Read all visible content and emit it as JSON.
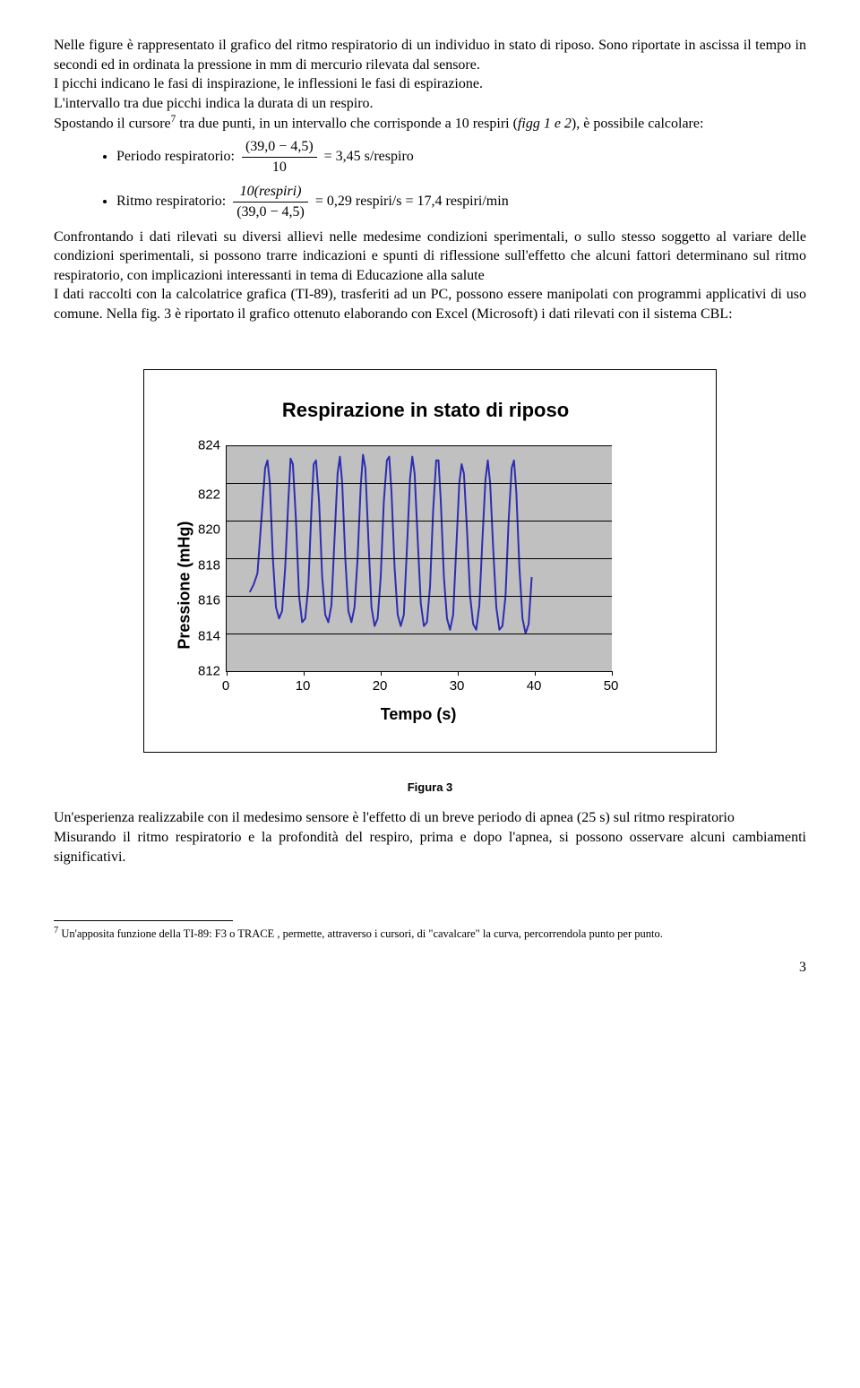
{
  "para1": "Nelle figure è rappresentato il grafico del ritmo respiratorio di un individuo in stato di riposo. Sono riportate in ascissa il tempo in secondi ed in ordinata la pressione in mm di mercurio rilevata dal sensore.",
  "para2": "I picchi indicano le fasi di inspirazione, le inflessioni le fasi di espirazione.",
  "para3": "L'intervallo tra due picchi indica la durata di un respiro.",
  "para4a": "Spostando il cursore",
  "para4_fn": "7",
  "para4b": " tra due punti, in un intervallo che corrisponde a 10 respiri (",
  "para4_figg": "figg 1 e 2",
  "para4c": "), è possibile calcolare:",
  "bullet1_label": "Periodo respiratorio: ",
  "bullet1_num": "(39,0 − 4,5)",
  "bullet1_den": "10",
  "bullet1_tail": " = 3,45 s/respiro",
  "bullet2_label": "Ritmo respiratorio: ",
  "bullet2_num": "10(respiri)",
  "bullet2_den": "(39,0 − 4,5)",
  "bullet2_tail": " = 0,29 respiri/s = 17,4 respiri/min",
  "para5": "Confrontando i dati rilevati su diversi allievi nelle medesime condizioni sperimentali, o sullo stesso soggetto al variare delle condizioni sperimentali, si possono trarre indicazioni e spunti di riflessione sull'effetto che alcuni fattori determinano sul ritmo respiratorio, con implicazioni interessanti in tema di Educazione alla salute",
  "para6": "I dati raccolti con la calcolatrice grafica (TI-89), trasferiti ad un PC, possono essere manipolati con programmi applicativi di uso comune. Nella fig. 3 è riportato il grafico ottenuto elaborando con Excel (Microsoft) i dati rilevati con il sistema CBL:",
  "chart": {
    "type": "line",
    "title": "Respirazione in stato di riposo",
    "xlabel": "Tempo (s)",
    "ylabel": "Pressione (mHg)",
    "xlim": [
      0,
      50
    ],
    "ylim": [
      812,
      824
    ],
    "xticks": [
      0,
      10,
      20,
      30,
      40,
      50
    ],
    "yticks": [
      824,
      822,
      820,
      818,
      816,
      814,
      812
    ],
    "background_color": "#c0c0c0",
    "grid_color": "#000000",
    "line_color": "#2d2db3",
    "line_width": 2,
    "data": [
      {
        "x": 3.0,
        "y": 816.2
      },
      {
        "x": 3.5,
        "y": 816.6
      },
      {
        "x": 4.0,
        "y": 817.2
      },
      {
        "x": 4.5,
        "y": 820.0
      },
      {
        "x": 5.0,
        "y": 822.8
      },
      {
        "x": 5.3,
        "y": 823.2
      },
      {
        "x": 5.6,
        "y": 822.0
      },
      {
        "x": 6.0,
        "y": 818.0
      },
      {
        "x": 6.4,
        "y": 815.4
      },
      {
        "x": 6.8,
        "y": 814.8
      },
      {
        "x": 7.2,
        "y": 815.2
      },
      {
        "x": 7.6,
        "y": 817.5
      },
      {
        "x": 8.0,
        "y": 821.0
      },
      {
        "x": 8.3,
        "y": 823.3
      },
      {
        "x": 8.6,
        "y": 823.0
      },
      {
        "x": 9.0,
        "y": 820.0
      },
      {
        "x": 9.4,
        "y": 816.0
      },
      {
        "x": 9.8,
        "y": 814.6
      },
      {
        "x": 10.2,
        "y": 814.8
      },
      {
        "x": 10.6,
        "y": 816.5
      },
      {
        "x": 11.0,
        "y": 820.5
      },
      {
        "x": 11.3,
        "y": 823.0
      },
      {
        "x": 11.6,
        "y": 823.2
      },
      {
        "x": 12.0,
        "y": 821.0
      },
      {
        "x": 12.4,
        "y": 817.0
      },
      {
        "x": 12.8,
        "y": 815.0
      },
      {
        "x": 13.2,
        "y": 814.6
      },
      {
        "x": 13.6,
        "y": 815.5
      },
      {
        "x": 14.0,
        "y": 819.0
      },
      {
        "x": 14.4,
        "y": 822.5
      },
      {
        "x": 14.7,
        "y": 823.4
      },
      {
        "x": 15.0,
        "y": 822.0
      },
      {
        "x": 15.4,
        "y": 818.0
      },
      {
        "x": 15.8,
        "y": 815.2
      },
      {
        "x": 16.2,
        "y": 814.6
      },
      {
        "x": 16.6,
        "y": 815.4
      },
      {
        "x": 17.0,
        "y": 818.0
      },
      {
        "x": 17.4,
        "y": 821.8
      },
      {
        "x": 17.7,
        "y": 823.5
      },
      {
        "x": 18.0,
        "y": 822.8
      },
      {
        "x": 18.4,
        "y": 819.0
      },
      {
        "x": 18.8,
        "y": 815.4
      },
      {
        "x": 19.2,
        "y": 814.4
      },
      {
        "x": 19.6,
        "y": 814.8
      },
      {
        "x": 20.0,
        "y": 817.0
      },
      {
        "x": 20.4,
        "y": 821.0
      },
      {
        "x": 20.8,
        "y": 823.2
      },
      {
        "x": 21.1,
        "y": 823.4
      },
      {
        "x": 21.4,
        "y": 821.5
      },
      {
        "x": 21.8,
        "y": 817.5
      },
      {
        "x": 22.2,
        "y": 815.0
      },
      {
        "x": 22.6,
        "y": 814.4
      },
      {
        "x": 23.0,
        "y": 815.0
      },
      {
        "x": 23.4,
        "y": 818.5
      },
      {
        "x": 23.8,
        "y": 822.2
      },
      {
        "x": 24.1,
        "y": 823.4
      },
      {
        "x": 24.4,
        "y": 822.5
      },
      {
        "x": 24.8,
        "y": 819.0
      },
      {
        "x": 25.2,
        "y": 815.6
      },
      {
        "x": 25.6,
        "y": 814.4
      },
      {
        "x": 26.0,
        "y": 814.6
      },
      {
        "x": 26.4,
        "y": 816.5
      },
      {
        "x": 26.8,
        "y": 820.5
      },
      {
        "x": 27.2,
        "y": 823.2
      },
      {
        "x": 27.5,
        "y": 823.2
      },
      {
        "x": 27.8,
        "y": 821.0
      },
      {
        "x": 28.2,
        "y": 817.0
      },
      {
        "x": 28.6,
        "y": 814.8
      },
      {
        "x": 29.0,
        "y": 814.2
      },
      {
        "x": 29.4,
        "y": 815.0
      },
      {
        "x": 29.8,
        "y": 818.5
      },
      {
        "x": 30.2,
        "y": 822.0
      },
      {
        "x": 30.5,
        "y": 823.0
      },
      {
        "x": 30.8,
        "y": 822.5
      },
      {
        "x": 31.2,
        "y": 819.5
      },
      {
        "x": 31.6,
        "y": 816.0
      },
      {
        "x": 32.0,
        "y": 814.5
      },
      {
        "x": 32.4,
        "y": 814.2
      },
      {
        "x": 32.8,
        "y": 815.5
      },
      {
        "x": 33.2,
        "y": 819.0
      },
      {
        "x": 33.6,
        "y": 822.2
      },
      {
        "x": 33.9,
        "y": 823.2
      },
      {
        "x": 34.2,
        "y": 822.0
      },
      {
        "x": 34.6,
        "y": 818.5
      },
      {
        "x": 35.0,
        "y": 815.4
      },
      {
        "x": 35.4,
        "y": 814.2
      },
      {
        "x": 35.8,
        "y": 814.4
      },
      {
        "x": 36.2,
        "y": 816.0
      },
      {
        "x": 36.6,
        "y": 820.0
      },
      {
        "x": 37.0,
        "y": 822.8
      },
      {
        "x": 37.3,
        "y": 823.2
      },
      {
        "x": 37.6,
        "y": 821.5
      },
      {
        "x": 38.0,
        "y": 817.5
      },
      {
        "x": 38.4,
        "y": 814.8
      },
      {
        "x": 38.8,
        "y": 814.0
      },
      {
        "x": 39.2,
        "y": 814.5
      },
      {
        "x": 39.6,
        "y": 817.0
      }
    ]
  },
  "fig_caption": "Figura 3",
  "para7": "Un'esperienza realizzabile con il medesimo sensore è l'effetto di un breve periodo di apnea (25 s) sul ritmo respiratorio",
  "para8": "Misurando il ritmo respiratorio e la profondità del respiro, prima e dopo l'apnea, si possono osservare alcuni cambiamenti significativi.",
  "footnote_num": "7",
  "footnote_text": " Un'apposita funzione della TI-89: F3 o TRACE , permette, attraverso i cursori, di \"cavalcare\" la curva, percorrendola punto per punto.",
  "page_number": "3"
}
